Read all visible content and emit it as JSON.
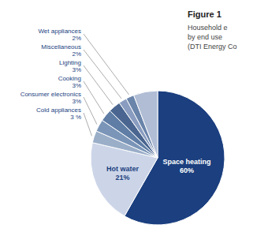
{
  "chart_data": {
    "type": "pie",
    "title": "Figure 1",
    "subtitle": "Household e\nby end use\n(DTI Energy Co",
    "categories": [
      "Space heating",
      "Hot water",
      "Cold appliances",
      "Consumer electronics",
      "Cooking",
      "Lighting",
      "Miscellaneous",
      "Wet appliances",
      null
    ],
    "values": [
      60,
      21,
      3,
      3,
      3,
      3,
      2,
      2,
      6
    ],
    "value_labels": [
      "60%",
      "21%",
      "3 %",
      "3%",
      "3%",
      "3%",
      "2%",
      "2%",
      null
    ],
    "colors": [
      "#1b3f7f",
      "#ccd5e8",
      "#9aaec8",
      "#7a95b8",
      "#5f7da5",
      "#4a6690",
      "#8a9dc0",
      "#6a84aa",
      "#b0bdd5"
    ],
    "data_labels": true
  }
}
